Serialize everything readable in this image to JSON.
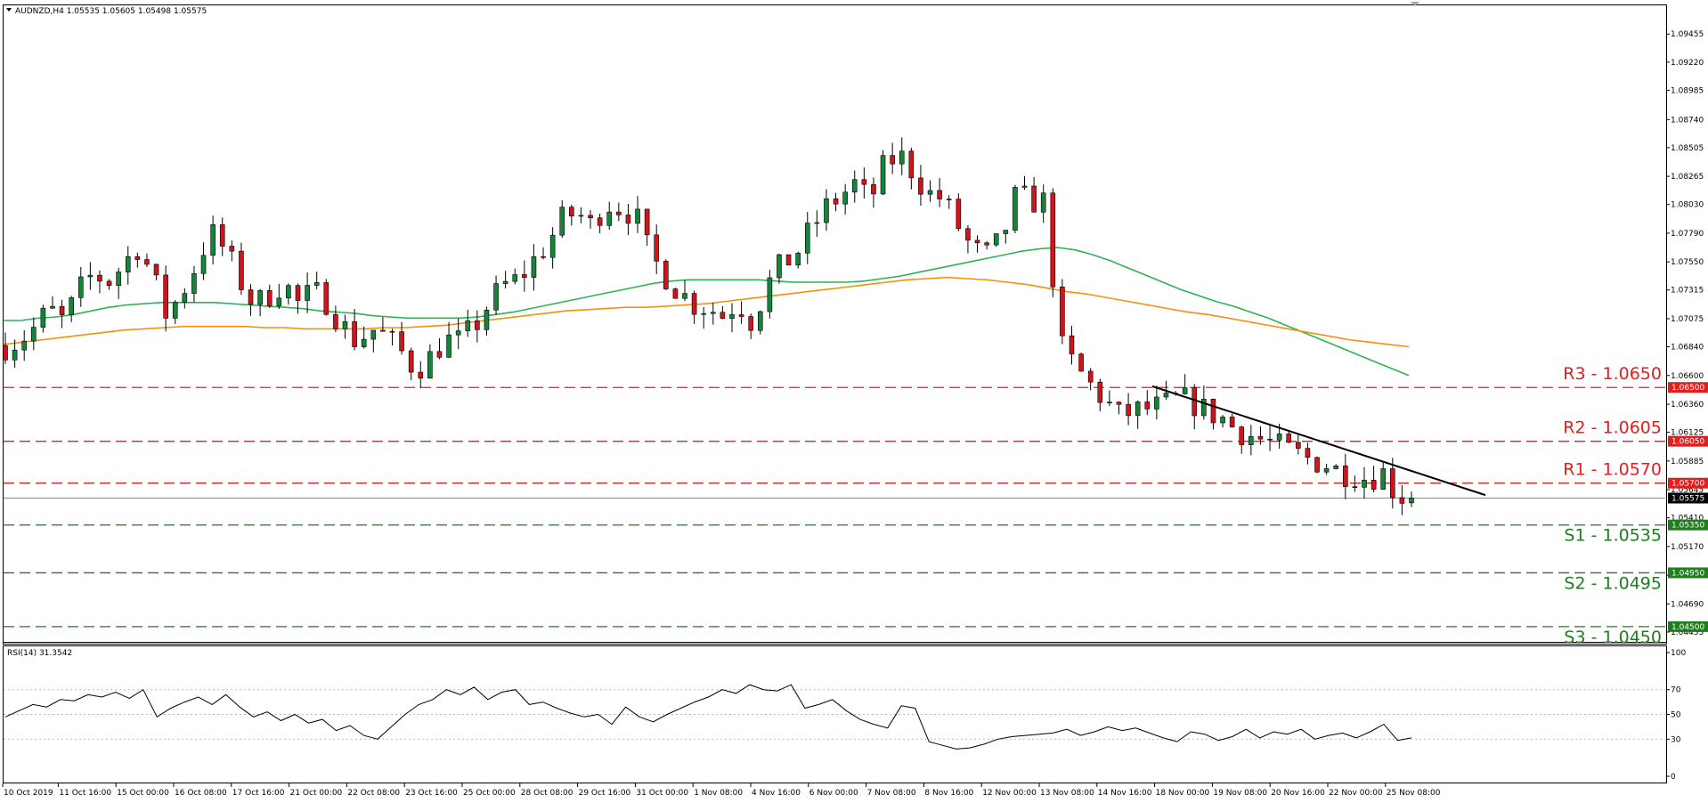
{
  "window": {
    "title": "AUDNZD,H4 1.05535 1.05605 1.05498 1.05575",
    "rsi_title": "RSI(14) 31.3542"
  },
  "colors": {
    "bull": "#15853a",
    "bear": "#d0141c",
    "ma_green": "#2db354",
    "ma_orange": "#f5900f",
    "resistance": "#e02020",
    "support": "#1e7f1e",
    "trendline": "#000000",
    "rsi_line": "#000000",
    "frame": "#000000"
  },
  "chart_data": [
    {
      "type": "candlestick",
      "symbol": "AUDNZD",
      "timeframe": "H4",
      "header": {
        "open": 1.05535,
        "high": 1.05605,
        "low": 1.05498,
        "close": 1.05575
      },
      "ylim": [
        1.0441,
        1.0968
      ],
      "y_ticks": [
        "1.09455",
        "1.09220",
        "1.08985",
        "1.08740",
        "1.08505",
        "1.08265",
        "1.08030",
        "1.07790",
        "1.07550",
        "1.07315",
        "1.07075",
        "1.06840",
        "1.06600",
        "1.06360",
        "1.06125",
        "1.05885",
        "1.05645",
        "1.05410",
        "1.05170",
        "1.04930",
        "1.04690",
        "1.04455"
      ],
      "x_labels": [
        "10 Oct 2019",
        "11 Oct 16:00",
        "15 Oct 00:00",
        "16 Oct 08:00",
        "17 Oct 16:00",
        "21 Oct 00:00",
        "22 Oct 08:00",
        "23 Oct 16:00",
        "25 Oct 00:00",
        "28 Oct 08:00",
        "29 Oct 16:00",
        "31 Oct 00:00",
        "1 Nov 08:00",
        "4 Nov 16:00",
        "6 Nov 00:00",
        "7 Nov 08:00",
        "8 Nov 16:00",
        "12 Nov 00:00",
        "13 Nov 08:00",
        "14 Nov 16:00",
        "18 Nov 00:00",
        "19 Nov 08:00",
        "20 Nov 16:00",
        "22 Nov 00:00",
        "25 Nov 08:00"
      ],
      "close_path": [
        1.0685,
        1.069,
        1.07,
        1.0715,
        1.0705,
        1.073,
        1.0745,
        1.0738,
        1.0752,
        1.0768,
        1.0745,
        1.071,
        1.0728,
        1.0752,
        1.078,
        1.0765,
        1.074,
        1.0718,
        1.0728,
        1.0738,
        1.072,
        1.073,
        1.0722,
        1.0702,
        1.0688,
        1.0699,
        1.0692,
        1.068,
        1.0665,
        1.0675,
        1.069,
        1.0688,
        1.07,
        1.072,
        1.0735,
        1.074,
        1.0755,
        1.077,
        1.079,
        1.0797,
        1.0785,
        1.0805,
        1.08,
        1.0795,
        1.076,
        1.0745,
        1.073,
        1.072,
        1.0717,
        1.071,
        1.0722,
        1.0705,
        1.0735,
        1.0752,
        1.0762,
        1.0782,
        1.08,
        1.081,
        1.082,
        1.0805,
        1.0835,
        1.0845,
        1.083,
        1.0812,
        1.0808,
        1.0786,
        1.0765,
        1.076,
        1.0773,
        1.081,
        1.0806,
        1.0805,
        1.0685,
        1.0668,
        1.0653,
        1.064,
        1.0626,
        1.063,
        1.0632,
        1.0634,
        1.064,
        1.0638,
        1.063,
        1.0625,
        1.0615,
        1.061,
        1.0605,
        1.06,
        1.0595,
        1.059,
        1.0587,
        1.058,
        1.0578,
        1.0574,
        1.058,
        1.056,
        1.05575
      ],
      "series": [
        {
          "name": "",
          "role": "moving-average-green",
          "values": [
            1.0706,
            1.0706,
            1.0708,
            1.0709,
            1.0711,
            1.0714,
            1.0717,
            1.0719,
            1.072,
            1.0721,
            1.0721,
            1.0721,
            1.0721,
            1.072,
            1.0719,
            1.0718,
            1.0717,
            1.0716,
            1.0714,
            1.0713,
            1.0712,
            1.071,
            1.0709,
            1.0708,
            1.0708,
            1.0708,
            1.0708,
            1.0709,
            1.0711,
            1.0713,
            1.0716,
            1.0719,
            1.0722,
            1.0725,
            1.0728,
            1.0731,
            1.0734,
            1.0737,
            1.0739,
            1.074,
            1.074,
            1.074,
            1.074,
            1.074,
            1.0739,
            1.0738,
            1.0738,
            1.0738,
            1.0738,
            1.0739,
            1.0741,
            1.0743,
            1.0746,
            1.0749,
            1.0752,
            1.0755,
            1.0758,
            1.0761,
            1.0764,
            1.0766,
            1.0767,
            1.0765,
            1.0761,
            1.0756,
            1.075,
            1.0744,
            1.0738,
            1.0732,
            1.0727,
            1.0722,
            1.0718,
            1.0713,
            1.0708,
            1.0702,
            1.0696,
            1.069,
            1.0684,
            1.0678,
            1.0672,
            1.0666,
            1.066
          ]
        },
        {
          "name": "",
          "role": "moving-average-orange",
          "values": [
            1.0686,
            1.0688,
            1.069,
            1.0692,
            1.0694,
            1.0696,
            1.0698,
            1.0699,
            1.07,
            1.0701,
            1.0701,
            1.0701,
            1.0701,
            1.07,
            1.07,
            1.0699,
            1.0699,
            1.0699,
            1.0699,
            1.07,
            1.07,
            1.0701,
            1.0702,
            1.0704,
            1.0706,
            1.0708,
            1.071,
            1.0712,
            1.0714,
            1.0715,
            1.0716,
            1.0717,
            1.0717,
            1.0718,
            1.0719,
            1.072,
            1.0722,
            1.0724,
            1.0726,
            1.0728,
            1.073,
            1.0732,
            1.0734,
            1.0736,
            1.0738,
            1.074,
            1.0741,
            1.0742,
            1.0741,
            1.074,
            1.0738,
            1.0736,
            1.0733,
            1.073,
            1.0728,
            1.0725,
            1.0722,
            1.0719,
            1.0716,
            1.0713,
            1.0711,
            1.0708,
            1.0705,
            1.0702,
            1.0699,
            1.0696,
            1.0693,
            1.069,
            1.0688,
            1.0686,
            1.0684
          ]
        }
      ],
      "trendline": {
        "start": {
          "x": "18 Nov 00:00",
          "y": 1.0651
        },
        "end": {
          "x": "after 25 Nov 08:00",
          "y": 1.056
        }
      },
      "levels": [
        {
          "label": "R3 - 1.0650",
          "value": 1.065,
          "tag": "1.06500",
          "kind": "resistance"
        },
        {
          "label": "R2 - 1.0605",
          "value": 1.0605,
          "tag": "1.06050",
          "kind": "resistance"
        },
        {
          "label": "R1 - 1.0570",
          "value": 1.057,
          "tag": "1.05700",
          "kind": "resistance"
        },
        {
          "label": "S1 - 1.0535",
          "value": 1.0535,
          "tag": "1.05350",
          "kind": "support"
        },
        {
          "label": "S2 - 1.0495",
          "value": 1.0495,
          "tag": "1.04950",
          "kind": "support"
        },
        {
          "label": "S3 - 1.0450",
          "value": 1.045,
          "tag": "1.04500",
          "kind": "support"
        }
      ],
      "current_price": {
        "value": 1.05575,
        "tag": "1.05575"
      }
    },
    {
      "type": "line",
      "indicator": "RSI(14)",
      "last_value": 31.3542,
      "ylim": [
        0,
        100
      ],
      "y_ticks": [
        100,
        70,
        50,
        30,
        0
      ],
      "levels": [
        70,
        50,
        30
      ],
      "values": [
        48,
        53,
        58,
        56,
        62,
        61,
        66,
        64,
        68,
        63,
        70,
        48,
        55,
        60,
        64,
        58,
        66,
        56,
        48,
        52,
        45,
        50,
        43,
        46,
        37,
        41,
        33,
        30,
        40,
        50,
        58,
        62,
        70,
        66,
        72,
        62,
        68,
        70,
        58,
        60,
        55,
        51,
        48,
        50,
        42,
        56,
        48,
        44,
        50,
        55,
        60,
        64,
        70,
        67,
        74,
        70,
        69,
        74,
        55,
        58,
        62,
        53,
        46,
        42,
        39,
        57,
        55,
        28,
        25,
        22,
        23,
        26,
        30,
        32,
        33,
        34,
        35,
        38,
        33,
        36,
        40,
        37,
        39,
        35,
        31,
        28,
        36,
        34,
        29,
        32,
        38,
        31,
        36,
        34,
        38,
        30,
        33,
        35,
        31,
        36,
        42,
        29,
        31
      ]
    }
  ]
}
